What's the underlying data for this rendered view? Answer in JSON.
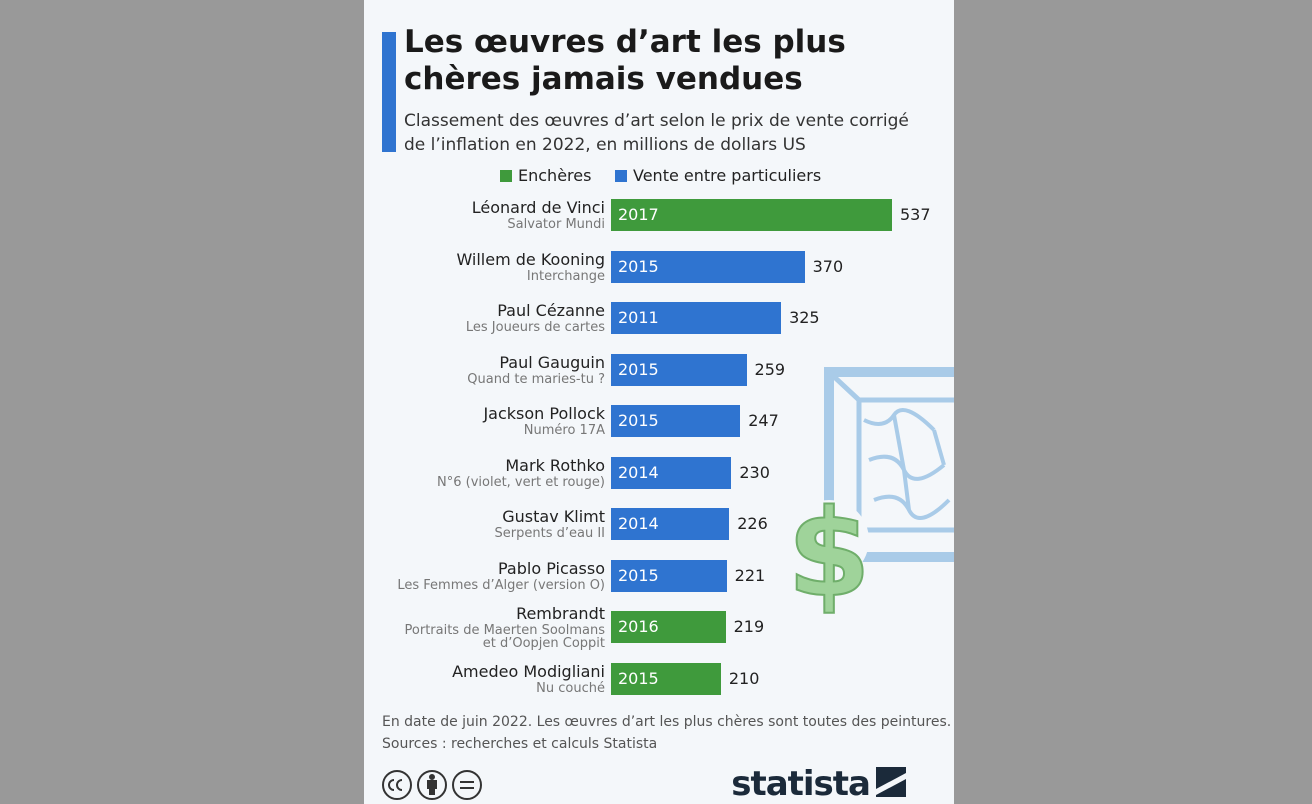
{
  "chart_data": {
    "type": "bar",
    "orientation": "horizontal",
    "title": "Les œuvres d’art les plus\nchères jamais vendues",
    "subtitle": "Classement des œuvres d’art selon le prix de vente corrigé\nde l’inflation en 2022, en millions de dollars US",
    "categories": [
      "Léonard de Vinci",
      "Willem de Kooning",
      "Paul Cézanne",
      "Paul Gauguin",
      "Jackson Pollock",
      "Mark Rothko",
      "Gustav Klimt",
      "Pablo Picasso",
      "Rembrandt",
      "Amedeo Modigliani"
    ],
    "works": [
      "Salvator Mundi",
      "Interchange",
      "Les Joueurs de cartes",
      "Quand te maries-tu ?",
      "Numéro 17A",
      "N°6 (violet, vert et rouge)",
      "Serpents d’eau II",
      "Les Femmes d’Alger (version O)",
      "Portraits de Maerten Soolmans\net d’Oopjen Coppit",
      "Nu couché"
    ],
    "years": [
      2017,
      2015,
      2011,
      2015,
      2015,
      2014,
      2014,
      2015,
      2016,
      2015
    ],
    "series": [
      {
        "name": "Enchères",
        "color": "#3f9a3c",
        "values": [
          537,
          null,
          null,
          null,
          null,
          null,
          null,
          null,
          219,
          210
        ]
      },
      {
        "name": "Vente entre particuliers",
        "color": "#2f74d0",
        "values": [
          null,
          370,
          325,
          259,
          247,
          230,
          226,
          221,
          null,
          null
        ]
      }
    ],
    "note": "En date de juin 2022. Les œuvres d’art les plus chères sont toutes des peintures.",
    "source": "Sources : recherches et calculs Statista",
    "brand": "statista"
  }
}
